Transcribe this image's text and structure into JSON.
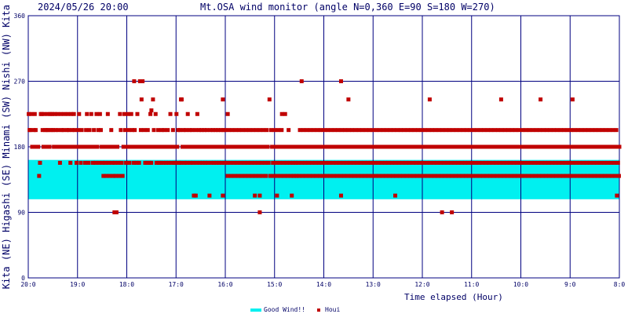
{
  "header": {
    "datetime": "2024/05/26 20:00",
    "title": "Mt.OSA wind monitor (angle N=0,360 E=90 S=180 W=270)"
  },
  "colors": {
    "axis": "#000080",
    "text": "#000066",
    "good_band": "#00f0f0",
    "points": "#c00000"
  },
  "chart_data": {
    "type": "scatter",
    "title": "Mt.OSA wind monitor (angle N=0,360 E=90 S=180 W=270)",
    "xlabel": "Time elapsed (Hour)",
    "ylabel": "Kita  (NE)  Higashi  (SE)  Minami  (SW)  Nishi  (NW)  Kita",
    "x_ticks": [
      "20:0",
      "19:0",
      "18:0",
      "17:0",
      "16:0",
      "15:0",
      "14:0",
      "13:0",
      "12:0",
      "11:0",
      "10:0",
      "9:0",
      "8:0"
    ],
    "y_ticks": [
      "0",
      "90",
      "180",
      "270",
      "360"
    ],
    "ylim": [
      0,
      360
    ],
    "x_range_hours": [
      0,
      12
    ],
    "grid": true,
    "legend_position": "bottom-right",
    "good_wind": {
      "name": "Good Wind!!",
      "from": 108,
      "to": 162
    },
    "series": [
      {
        "name": "Houi",
        "angles": [
          225,
          203,
          203,
          225,
          180,
          180,
          203,
          225,
          203,
          180,
          180,
          180,
          140,
          158,
          225,
          225,
          203,
          180,
          225,
          203,
          180,
          203,
          225,
          203,
          180,
          225,
          203,
          225,
          203,
          180,
          225,
          203,
          180,
          225,
          203,
          180,
          158,
          225,
          203,
          180,
          203,
          225,
          180,
          180,
          203,
          225,
          203,
          180,
          158,
          225,
          203,
          180,
          225,
          203,
          180,
          158,
          180,
          203,
          225,
          180,
          158,
          203,
          180,
          180,
          180,
          158,
          203,
          225,
          180,
          158,
          203,
          180,
          225,
          180,
          158,
          203,
          180,
          158,
          225,
          180,
          203,
          158,
          225,
          203,
          180,
          158,
          140,
          180,
          158,
          140,
          180,
          225,
          158,
          140,
          180,
          203,
          158,
          140,
          180,
          158,
          140,
          90,
          180,
          158,
          140,
          225,
          203,
          158,
          140,
          180,
          225,
          203,
          158,
          180,
          225,
          203,
          158,
          180,
          225,
          203,
          180,
          158,
          203,
          180,
          158,
          225,
          180,
          158,
          270,
          203,
          180,
          270,
          180,
          203,
          158,
          180,
          158,
          203,
          180,
          158,
          225,
          158,
          180,
          245,
          203,
          180,
          225,
          158,
          180,
          203,
          158,
          180,
          158,
          203,
          180,
          158,
          203,
          180,
          158,
          180,
          203,
          158,
          180,
          225,
          158,
          180,
          203,
          158,
          180,
          158,
          225,
          180,
          203,
          158,
          203,
          158,
          245,
          180,
          203,
          158,
          180,
          203,
          158,
          225,
          180,
          203,
          158,
          180,
          203,
          158,
          113,
          180,
          203,
          158,
          225,
          180,
          203,
          158,
          180,
          203,
          158,
          180,
          203,
          158,
          180,
          203,
          158,
          180,
          113,
          203,
          158,
          180,
          203,
          158,
          180,
          203,
          158,
          180,
          203,
          158,
          180,
          203,
          158,
          180,
          203,
          158,
          203,
          180,
          158,
          140,
          203,
          180,
          158,
          140,
          203,
          180,
          158,
          140,
          203,
          180,
          158,
          140,
          203,
          180,
          158,
          140,
          203,
          180,
          158,
          140,
          203,
          180,
          158,
          140,
          203,
          180,
          158,
          140,
          203,
          180,
          158,
          140,
          203,
          180,
          158,
          140,
          203,
          180,
          158,
          140,
          203,
          180,
          158,
          140,
          203,
          180,
          158,
          245,
          140,
          203,
          180,
          158,
          140,
          203,
          180,
          158,
          140,
          203,
          180,
          158,
          140,
          203,
          180,
          158,
          140,
          225,
          180,
          158,
          140,
          203,
          180,
          158,
          140,
          180,
          158,
          140,
          180,
          158,
          140,
          180,
          158,
          140,
          203,
          180,
          158,
          140,
          203,
          180,
          158,
          140,
          203,
          180,
          158,
          140,
          203,
          180,
          158,
          140,
          203,
          180,
          158,
          140,
          203,
          180,
          158,
          140,
          203,
          180,
          158,
          140,
          203,
          180,
          158,
          140,
          203,
          180,
          158,
          140,
          203,
          180,
          158,
          140,
          203,
          180,
          158,
          140,
          203,
          180,
          158,
          140,
          203,
          180,
          158,
          140,
          203,
          180,
          158,
          140,
          203,
          180,
          158,
          140,
          203,
          180,
          158,
          140,
          203,
          180,
          158,
          140,
          203,
          180,
          158,
          140,
          203,
          180,
          158,
          140,
          203,
          180,
          158,
          140,
          203,
          180,
          158,
          140,
          203,
          180,
          158,
          140,
          203,
          180,
          158,
          140,
          203,
          180,
          158,
          140,
          203,
          180,
          158,
          140,
          203,
          180,
          158,
          140,
          203,
          180,
          158,
          140,
          203,
          180,
          158,
          140,
          203,
          180,
          158,
          140,
          203,
          180,
          158,
          140,
          203,
          180,
          158,
          140,
          203,
          180,
          158,
          140,
          203,
          180,
          158,
          140,
          203,
          180,
          158,
          140,
          203,
          180,
          158,
          140,
          203,
          180,
          158,
          140,
          203,
          180,
          158,
          140,
          203,
          180,
          158,
          140,
          203,
          180,
          158,
          140,
          203,
          180,
          158,
          140,
          203,
          180,
          158,
          140,
          203,
          180,
          158,
          140,
          203,
          180,
          158,
          140,
          203,
          180,
          158,
          140,
          203,
          180,
          158,
          140,
          203,
          180,
          158,
          140,
          203,
          180,
          158,
          140,
          203,
          180,
          158,
          140,
          203,
          180,
          158,
          140,
          203,
          180,
          158,
          140,
          203,
          180,
          158,
          140,
          203,
          180,
          158,
          140,
          203,
          180,
          158,
          140,
          203,
          180,
          158,
          140,
          203,
          180,
          158,
          140,
          203,
          180,
          158,
          140,
          203,
          180,
          158,
          140,
          203,
          180,
          158,
          140,
          203,
          180,
          158,
          140,
          203,
          180,
          158,
          140,
          203,
          180,
          158,
          140,
          203,
          180,
          158,
          140,
          203,
          180,
          158,
          140,
          203,
          180,
          158,
          140,
          203,
          180,
          158,
          140,
          203,
          180,
          158,
          140,
          203,
          180,
          158,
          140,
          203,
          180,
          158,
          140,
          203,
          180,
          158,
          140,
          203,
          180,
          158,
          140,
          203,
          180,
          158,
          140,
          203,
          180,
          158,
          140,
          203,
          180,
          158,
          140,
          203,
          180,
          158,
          140,
          203,
          180,
          158,
          140,
          203,
          180,
          158,
          140,
          203,
          180,
          158,
          140,
          203,
          180,
          158,
          140,
          203,
          180,
          158,
          140,
          203,
          180,
          158,
          140,
          203,
          180,
          158,
          140,
          203,
          180,
          158,
          140,
          203,
          180,
          158,
          140,
          203,
          180,
          158,
          140,
          203,
          180,
          158,
          140,
          203,
          180,
          158,
          140,
          203,
          180,
          158,
          140,
          203,
          180,
          158,
          140,
          203,
          180,
          158,
          140,
          203,
          180,
          158,
          140,
          203,
          180,
          158,
          140,
          203,
          180,
          158,
          140
        ]
      }
    ],
    "notable_points": [
      {
        "hour": 1.75,
        "angle": 90
      },
      {
        "hour": 2.15,
        "angle": 270
      },
      {
        "hour": 2.3,
        "angle": 245
      },
      {
        "hour": 2.5,
        "angle": 230
      },
      {
        "hour": 2.7,
        "angle": 180
      },
      {
        "hour": 3.1,
        "angle": 245
      },
      {
        "hour": 3.4,
        "angle": 113
      },
      {
        "hour": 3.95,
        "angle": 113
      },
      {
        "hour": 3.95,
        "angle": 245
      },
      {
        "hour": 4.05,
        "angle": 225
      },
      {
        "hour": 4.6,
        "angle": 113
      },
      {
        "hour": 4.7,
        "angle": 90
      },
      {
        "hour": 4.7,
        "angle": 113
      },
      {
        "hour": 5.05,
        "angle": 113
      },
      {
        "hour": 5.15,
        "angle": 225
      },
      {
        "hour": 5.35,
        "angle": 113
      },
      {
        "hour": 5.55,
        "angle": 270
      },
      {
        "hour": 6.35,
        "angle": 270
      },
      {
        "hour": 6.35,
        "angle": 113
      },
      {
        "hour": 6.5,
        "angle": 245
      },
      {
        "hour": 7.45,
        "angle": 113
      },
      {
        "hour": 8.15,
        "angle": 245
      },
      {
        "hour": 8.4,
        "angle": 90
      },
      {
        "hour": 8.6,
        "angle": 90
      },
      {
        "hour": 9.6,
        "angle": 245
      },
      {
        "hour": 10.4,
        "angle": 245
      },
      {
        "hour": 11.05,
        "angle": 245
      },
      {
        "hour": 11.95,
        "angle": 113
      },
      {
        "hour": 12.0,
        "angle": 180
      }
    ]
  },
  "y_side_labels": [
    "Kita",
    "(NE)",
    "Higashi",
    "(SE)",
    "Minami",
    "(SW)",
    "Nishi",
    "(NW)",
    "Kita"
  ],
  "legend": {
    "good_wind": "Good Wind!!",
    "houi": "Houi"
  }
}
